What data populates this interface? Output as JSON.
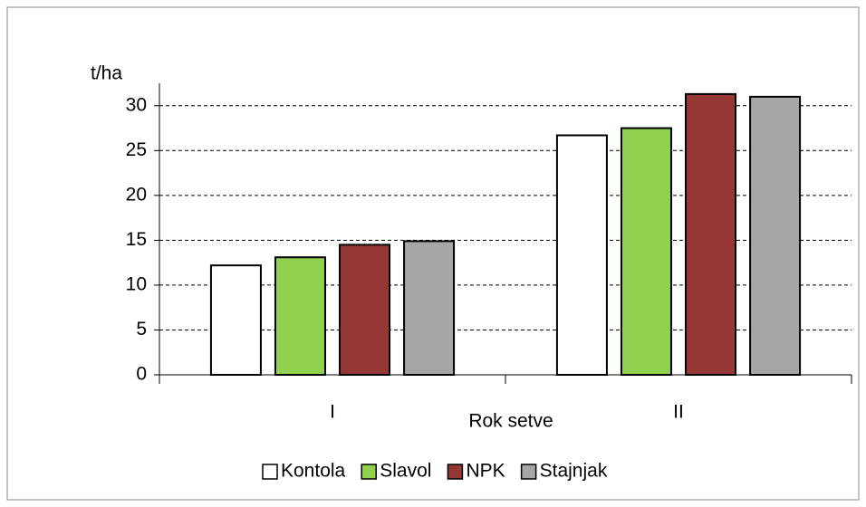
{
  "chart_data": {
    "type": "bar",
    "y_label": "t/ha",
    "x_label": "Rok setve",
    "categories": [
      "I",
      "II"
    ],
    "series": [
      {
        "name": "Kontola",
        "color": "#ffffff",
        "values": [
          12.2,
          26.7
        ]
      },
      {
        "name": "Slavol",
        "color": "#92d050",
        "values": [
          13.1,
          27.5
        ]
      },
      {
        "name": "NPK",
        "color": "#953735",
        "values": [
          14.5,
          31.3
        ]
      },
      {
        "name": "Stajnjak",
        "color": "#a6a6a6",
        "values": [
          14.9,
          31.0
        ]
      }
    ],
    "ylim": [
      0,
      32.5
    ],
    "yticks": [
      0,
      5,
      10,
      15,
      20,
      25,
      30
    ],
    "grid": true,
    "legend": "bottom"
  }
}
